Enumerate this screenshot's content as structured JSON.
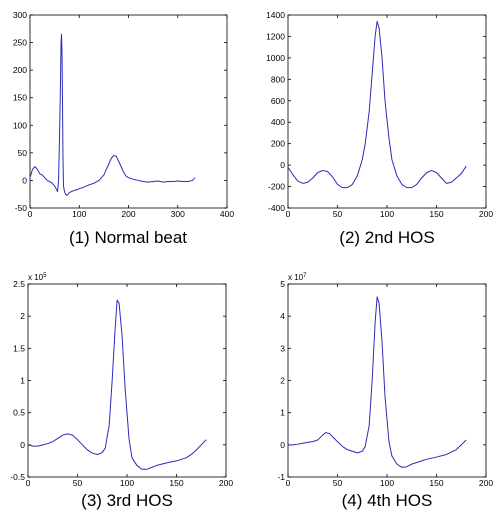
{
  "chart_data": [
    {
      "type": "line",
      "caption": "(1) Normal beat",
      "xlim": [
        0,
        400
      ],
      "ylim": [
        -50,
        300
      ],
      "xticks": [
        0,
        100,
        200,
        300,
        400
      ],
      "yticks": [
        -50,
        0,
        50,
        100,
        150,
        200,
        250,
        300
      ],
      "exponent": null,
      "series": [
        {
          "x": [
            0,
            5,
            10,
            15,
            20,
            25,
            30,
            35,
            40,
            45,
            50,
            53,
            56,
            58,
            60,
            62,
            63,
            64,
            65,
            66,
            67,
            68,
            70,
            72,
            75,
            80,
            85,
            90,
            95,
            100,
            110,
            120,
            130,
            140,
            150,
            155,
            160,
            165,
            170,
            175,
            180,
            185,
            190,
            195,
            200,
            210,
            220,
            230,
            240,
            250,
            260,
            270,
            280,
            290,
            300,
            310,
            320,
            330,
            335
          ],
          "y": [
            5,
            20,
            25,
            20,
            12,
            10,
            5,
            0,
            -2,
            -5,
            -10,
            -15,
            -20,
            0,
            80,
            180,
            250,
            265,
            230,
            140,
            40,
            -10,
            -20,
            -25,
            -27,
            -22,
            -20,
            -18,
            -17,
            -15,
            -12,
            -8,
            -5,
            0,
            10,
            20,
            30,
            40,
            45,
            44,
            35,
            25,
            15,
            8,
            5,
            2,
            0,
            -2,
            -3,
            -2,
            -1,
            -3,
            -2,
            -2,
            -1,
            -2,
            -2,
            0,
            5
          ]
        }
      ]
    },
    {
      "type": "line",
      "caption": "(2) 2nd HOS",
      "xlim": [
        0,
        200
      ],
      "ylim": [
        -400,
        1400
      ],
      "xticks": [
        0,
        50,
        100,
        150,
        200
      ],
      "yticks": [
        -400,
        -200,
        0,
        200,
        400,
        600,
        800,
        1000,
        1200,
        1400
      ],
      "exponent": null,
      "series": [
        {
          "x": [
            0,
            5,
            10,
            15,
            20,
            25,
            30,
            35,
            40,
            45,
            50,
            55,
            60,
            65,
            70,
            75,
            78,
            82,
            85,
            88,
            90,
            92,
            95,
            98,
            102,
            105,
            110,
            115,
            120,
            125,
            130,
            135,
            140,
            145,
            150,
            155,
            160,
            165,
            170,
            175,
            180
          ],
          "y": [
            -20,
            -90,
            -150,
            -170,
            -160,
            -120,
            -70,
            -50,
            -60,
            -110,
            -180,
            -210,
            -210,
            -180,
            -100,
            50,
            200,
            500,
            850,
            1200,
            1340,
            1280,
            1000,
            600,
            250,
            50,
            -100,
            -180,
            -210,
            -210,
            -180,
            -120,
            -70,
            -50,
            -70,
            -120,
            -170,
            -160,
            -120,
            -80,
            -10
          ]
        }
      ]
    },
    {
      "type": "line",
      "caption": "(3) 3rd HOS",
      "xlim": [
        0,
        200
      ],
      "ylim": [
        -0.5,
        2.5
      ],
      "xticks": [
        0,
        50,
        100,
        150,
        200
      ],
      "yticks": [
        -0.5,
        0,
        0.5,
        1,
        1.5,
        2,
        2.5
      ],
      "exponent": "5",
      "series": [
        {
          "x": [
            0,
            5,
            10,
            15,
            20,
            25,
            30,
            35,
            40,
            45,
            50,
            55,
            60,
            65,
            70,
            75,
            78,
            82,
            85,
            88,
            90,
            92,
            95,
            98,
            102,
            105,
            110,
            115,
            120,
            125,
            130,
            140,
            150,
            160,
            165,
            170,
            175,
            180
          ],
          "y": [
            0,
            -0.02,
            -0.02,
            0,
            0.02,
            0.05,
            0.1,
            0.15,
            0.17,
            0.15,
            0.08,
            0,
            -0.08,
            -0.13,
            -0.15,
            -0.12,
            -0.05,
            0.3,
            1.0,
            1.8,
            2.25,
            2.2,
            1.7,
            0.9,
            0.1,
            -0.2,
            -0.32,
            -0.38,
            -0.38,
            -0.35,
            -0.32,
            -0.28,
            -0.25,
            -0.2,
            -0.15,
            -0.08,
            0,
            0.08
          ]
        }
      ]
    },
    {
      "type": "line",
      "caption": "(4) 4th HOS",
      "xlim": [
        0,
        200
      ],
      "ylim": [
        -1,
        5
      ],
      "xticks": [
        0,
        50,
        100,
        150,
        200
      ],
      "yticks": [
        -1,
        0,
        1,
        2,
        3,
        4,
        5
      ],
      "exponent": "7",
      "series": [
        {
          "x": [
            0,
            5,
            10,
            15,
            20,
            25,
            30,
            35,
            38,
            42,
            45,
            50,
            55,
            60,
            65,
            70,
            75,
            78,
            82,
            85,
            88,
            90,
            92,
            95,
            98,
            102,
            105,
            110,
            115,
            120,
            125,
            130,
            140,
            150,
            160,
            170,
            180
          ],
          "y": [
            0,
            0,
            0.02,
            0.05,
            0.08,
            0.1,
            0.15,
            0.3,
            0.38,
            0.35,
            0.25,
            0.1,
            -0.05,
            -0.15,
            -0.2,
            -0.25,
            -0.2,
            -0.05,
            0.6,
            2.0,
            3.8,
            4.6,
            4.4,
            3.2,
            1.5,
            0.1,
            -0.35,
            -0.6,
            -0.7,
            -0.68,
            -0.6,
            -0.55,
            -0.45,
            -0.38,
            -0.3,
            -0.15,
            0.15
          ]
        }
      ]
    }
  ],
  "colors": {
    "line": "#2b2bb8",
    "axes": "#000000",
    "background": "#ffffff"
  }
}
